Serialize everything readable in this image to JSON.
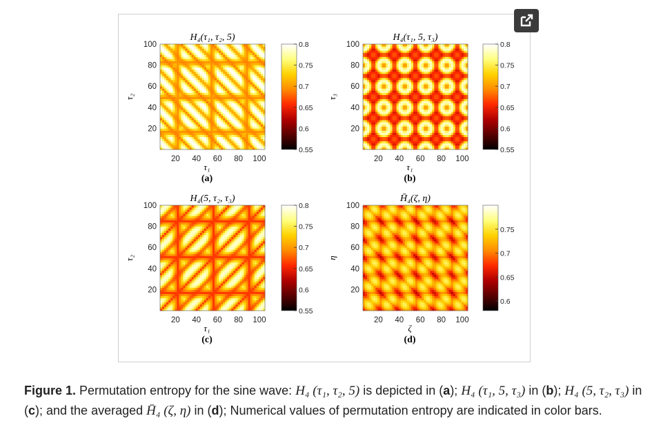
{
  "expand_icon": "external-link-icon",
  "colormap": [
    "#000000",
    "#5a0000",
    "#b00000",
    "#ff2a00",
    "#ff8c00",
    "#ffd200",
    "#ffff80",
    "#ffffff"
  ],
  "panels": [
    {
      "id": "a",
      "title": "H₄(τ₁, τ₂, 5)",
      "xlabel": "τ₁",
      "ylabel": "τ₂",
      "panel_label": "(a)",
      "xticks": [
        "20",
        "40",
        "60",
        "80",
        "100"
      ],
      "yticks": [
        "20",
        "40",
        "60",
        "80",
        "100"
      ],
      "colorbar_ticks": [
        "0.8",
        "0.75",
        "0.7",
        "0.65",
        "0.6",
        "0.55"
      ],
      "colorbar_range": [
        0.55,
        0.8
      ]
    },
    {
      "id": "b",
      "title": "H₄(τ₁, 5, τ₃)",
      "xlabel": "τ₁",
      "ylabel": "τ₃",
      "panel_label": "(b)",
      "xticks": [
        "20",
        "40",
        "60",
        "80",
        "100"
      ],
      "yticks": [
        "20",
        "40",
        "60",
        "80",
        "100"
      ],
      "colorbar_ticks": [
        "0.8",
        "0.75",
        "0.7",
        "0.65",
        "0.6",
        "0.55"
      ],
      "colorbar_range": [
        0.55,
        0.8
      ]
    },
    {
      "id": "c",
      "title": "H₄(5, τ₂, τ₃)",
      "xlabel": "τ₁",
      "ylabel": "τ₂",
      "panel_label": "(c)",
      "xticks": [
        "20",
        "40",
        "60",
        "80",
        "100"
      ],
      "yticks": [
        "20",
        "40",
        "60",
        "80",
        "100"
      ],
      "colorbar_ticks": [
        "0.8",
        "0.75",
        "0.7",
        "0.65",
        "0.6",
        "0.55"
      ],
      "colorbar_range": [
        0.55,
        0.8
      ]
    },
    {
      "id": "d",
      "title": "H̄₄(ζ, η)",
      "xlabel": "ζ",
      "ylabel": "η",
      "panel_label": "(d)",
      "xticks": [
        "20",
        "40",
        "60",
        "80",
        "100"
      ],
      "yticks": [
        "20",
        "40",
        "60",
        "80",
        "100"
      ],
      "colorbar_ticks": [
        "0.75",
        "0.7",
        "0.65",
        "0.6"
      ],
      "colorbar_range": [
        0.58,
        0.8
      ]
    }
  ],
  "caption": {
    "label": "Figure 1.",
    "t1": " Permutation entropy for the sine wave: ",
    "m1": "H₄ (τ₁, τ₂, 5)",
    "t2": " is depicted in (",
    "l1": "a",
    "t3": "); ",
    "m2": "H₄ (τ₁, 5, τ₃)",
    "t4": " in (",
    "l2": "b",
    "t5": "); ",
    "m3": "H₄ (5, τ₂, τ₃)",
    "t6": " in (",
    "l3": "c",
    "t7": "); and the averaged ",
    "m4": "H̄₄ (ζ, η)",
    "t8": " in (",
    "l4": "d",
    "t9": "); Numerical values of permutation entropy are indicated in color bars."
  }
}
